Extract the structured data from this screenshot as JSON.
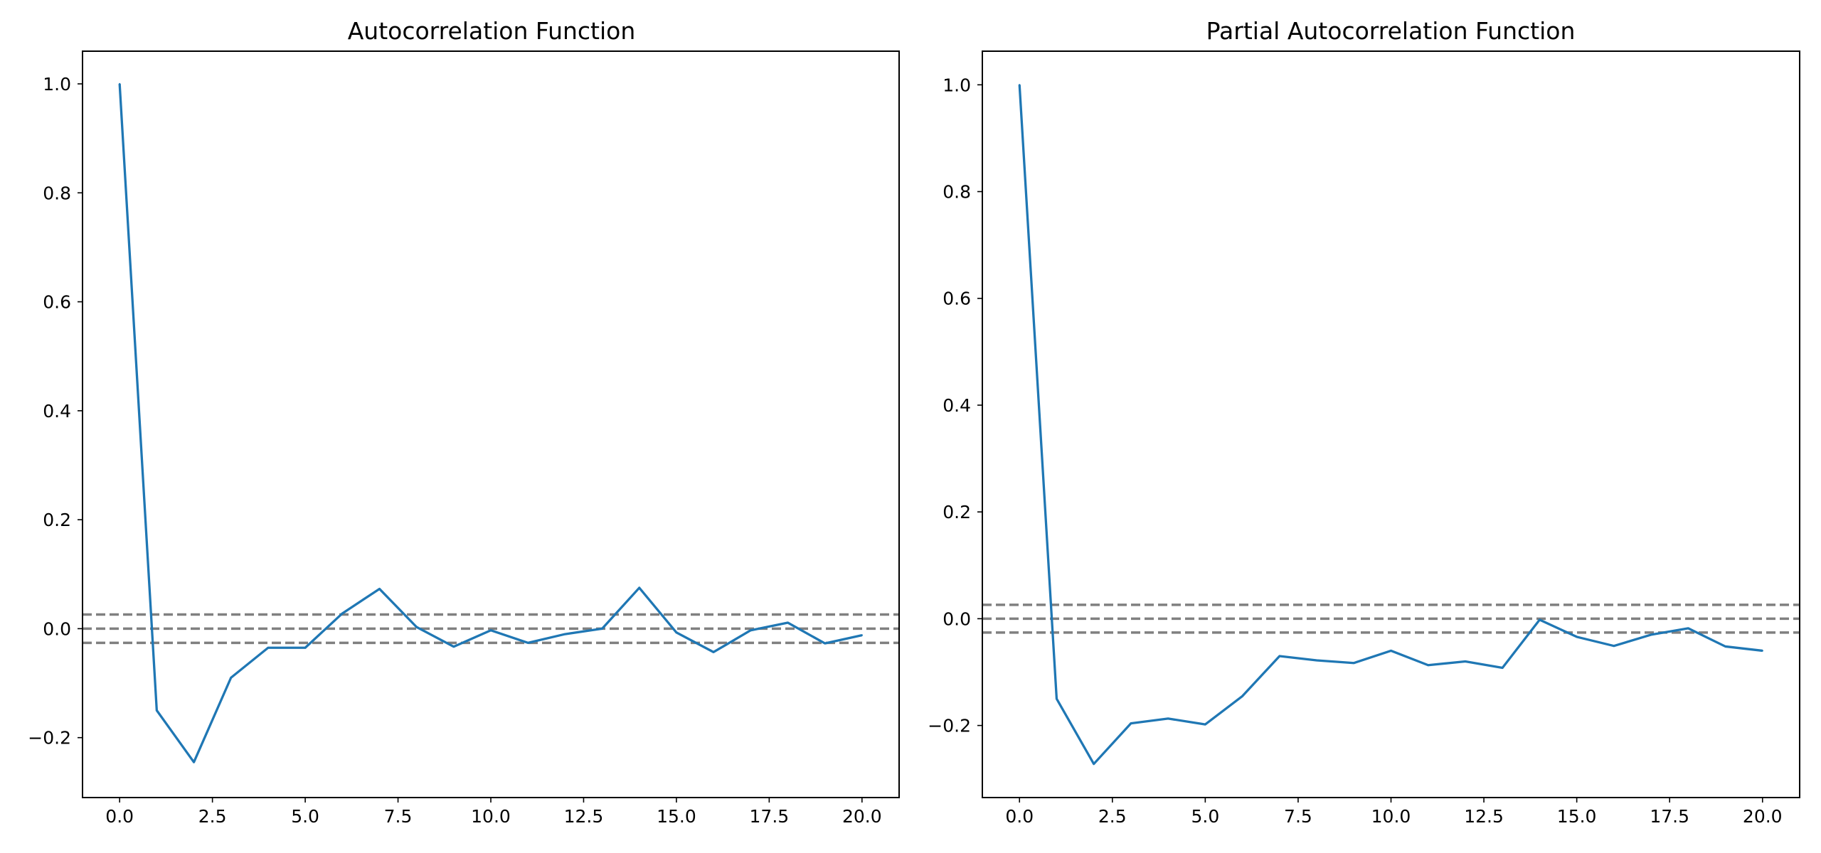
{
  "chart_data": [
    {
      "type": "line",
      "title": "Autocorrelation Function",
      "xlabel": "",
      "ylabel": "",
      "xlim": [
        -1,
        21
      ],
      "ylim": [
        -0.31,
        1.06
      ],
      "xticks": [
        0.0,
        2.5,
        5.0,
        7.5,
        10.0,
        12.5,
        15.0,
        17.5,
        20.0
      ],
      "xtick_labels": [
        "0.0",
        "2.5",
        "5.0",
        "7.5",
        "10.0",
        "12.5",
        "15.0",
        "17.5",
        "20.0"
      ],
      "yticks": [
        -0.2,
        0.0,
        0.2,
        0.4,
        0.6,
        0.8,
        1.0
      ],
      "ytick_labels": [
        "−0.2",
        "0.0",
        "0.2",
        "0.4",
        "0.6",
        "0.8",
        "1.0"
      ],
      "grid": false,
      "series": [
        {
          "color": "#1f77b4",
          "x": [
            0,
            1,
            2,
            3,
            4,
            5,
            6,
            7,
            8,
            9,
            10,
            11,
            12,
            13,
            14,
            15,
            16,
            17,
            18,
            19,
            20
          ],
          "values": [
            1.0,
            -0.15,
            -0.245,
            -0.09,
            -0.035,
            -0.035,
            0.028,
            0.073,
            0.003,
            -0.033,
            -0.003,
            -0.026,
            -0.01,
            0.0,
            0.075,
            -0.007,
            -0.043,
            -0.003,
            0.011,
            -0.027,
            -0.012
          ]
        }
      ],
      "reference_lines": [
        {
          "y": 0.026,
          "style": "dashed",
          "color": "#808080"
        },
        {
          "y": 0.0,
          "style": "dashed",
          "color": "#808080"
        },
        {
          "y": -0.026,
          "style": "dashed",
          "color": "#808080"
        }
      ]
    },
    {
      "type": "line",
      "title": "Partial Autocorrelation Function",
      "xlabel": "",
      "ylabel": "",
      "xlim": [
        -1,
        21
      ],
      "ylim": [
        -0.335,
        1.063
      ],
      "xticks": [
        0.0,
        2.5,
        5.0,
        7.5,
        10.0,
        12.5,
        15.0,
        17.5,
        20.0
      ],
      "xtick_labels": [
        "0.0",
        "2.5",
        "5.0",
        "7.5",
        "10.0",
        "12.5",
        "15.0",
        "17.5",
        "20.0"
      ],
      "yticks": [
        -0.2,
        0.0,
        0.2,
        0.4,
        0.6,
        0.8,
        1.0
      ],
      "ytick_labels": [
        "−0.2",
        "0.0",
        "0.2",
        "0.4",
        "0.6",
        "0.8",
        "1.0"
      ],
      "grid": false,
      "series": [
        {
          "color": "#1f77b4",
          "x": [
            0,
            1,
            2,
            3,
            4,
            5,
            6,
            7,
            8,
            9,
            10,
            11,
            12,
            13,
            14,
            15,
            16,
            17,
            18,
            19,
            20
          ],
          "values": [
            1.0,
            -0.15,
            -0.272,
            -0.196,
            -0.187,
            -0.198,
            -0.145,
            -0.07,
            -0.078,
            -0.083,
            -0.06,
            -0.087,
            -0.08,
            -0.092,
            -0.002,
            -0.034,
            -0.051,
            -0.03,
            -0.018,
            -0.052,
            -0.06
          ]
        }
      ],
      "reference_lines": [
        {
          "y": 0.026,
          "style": "dashed",
          "color": "#808080"
        },
        {
          "y": 0.0,
          "style": "dashed",
          "color": "#808080"
        },
        {
          "y": -0.026,
          "style": "dashed",
          "color": "#808080"
        }
      ]
    }
  ]
}
